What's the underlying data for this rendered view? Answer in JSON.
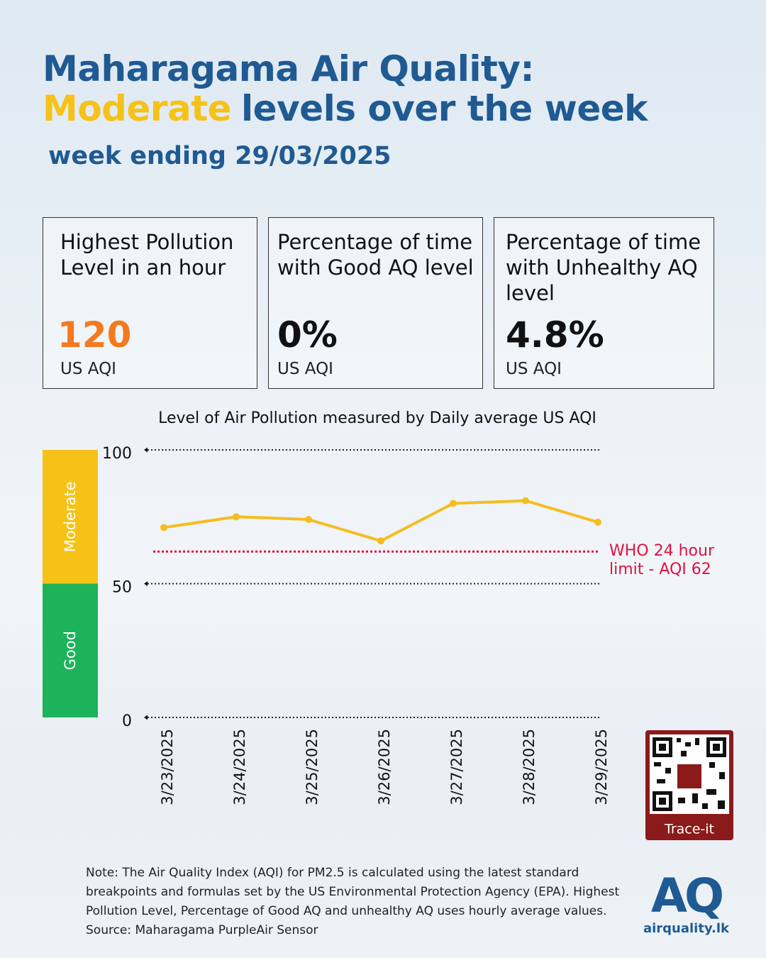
{
  "header": {
    "title_line1": "Maharagama Air Quality:",
    "title_highlight": "Moderate",
    "title_rest": "levels over the week",
    "subtitle": "week ending 29/03/2025"
  },
  "stats": [
    {
      "label": "Highest Pollution Level in an hour",
      "value": "120",
      "unit": "US AQI"
    },
    {
      "label": "Percentage of time with Good AQ level",
      "value": "0%",
      "unit": "US AQI"
    },
    {
      "label": "Percentage of time with Unhealthy AQ level",
      "value": "4.8%",
      "unit": "US AQI"
    }
  ],
  "chart_data": {
    "type": "line",
    "title": "Level of Air Pollution measured by Daily average US AQI",
    "categories": [
      "3/23/2025",
      "3/24/2025",
      "3/25/2025",
      "3/26/2025",
      "3/27/2025",
      "3/28/2025",
      "3/29/2025"
    ],
    "values": [
      71,
      75,
      74,
      66,
      80,
      81,
      73
    ],
    "color": "#f5bd1f",
    "ylim": [
      0,
      100
    ],
    "yticks": [
      0,
      50,
      100
    ],
    "grid": true,
    "bands": [
      {
        "label": "Good",
        "from": 0,
        "to": 50,
        "color": "#1db35a"
      },
      {
        "label": "Moderate",
        "from": 50,
        "to": 100,
        "color": "#f6c218"
      }
    ],
    "reference_line": {
      "value": 62,
      "label": "WHO 24 hour limit - AQI 62",
      "color": "#e0123f"
    }
  },
  "note": "Note: The Air Quality Index (AQI) for PM2.5 is calculated using the latest standard breakpoints and formulas set by the US Environmental Protection Agency (EPA). Highest Pollution Level, Percentage of Good AQ and unhealthy AQ uses hourly average values. Source: Maharagama PurpleAir Sensor",
  "qr": {
    "label": "Trace-it"
  },
  "logo": {
    "mark": "AQ",
    "site": "airquality.lk"
  }
}
